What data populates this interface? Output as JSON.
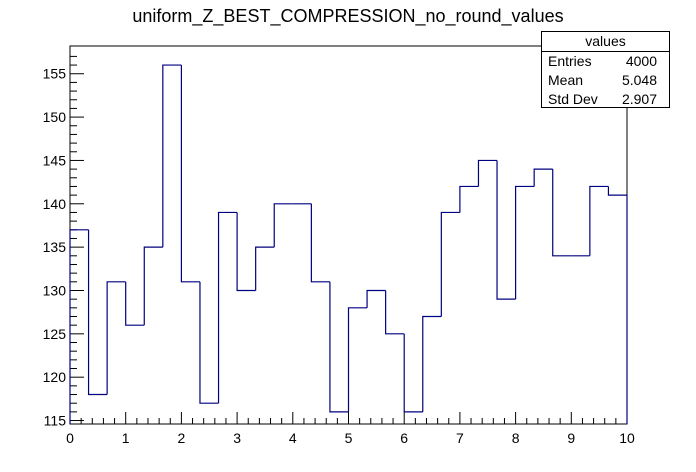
{
  "title": "uniform_Z_BEST_COMPRESSION_no_round_values",
  "stats": {
    "name": "values",
    "rows": [
      {
        "label": "Entries",
        "value": "4000"
      },
      {
        "label": "Mean",
        "value": "5.048"
      },
      {
        "label": "Std Dev",
        "value": "2.907"
      }
    ]
  },
  "chart_data": {
    "type": "histogram",
    "title": "uniform_Z_BEST_COMPRESSION_no_round_values",
    "xlabel": "",
    "ylabel": "",
    "xlim": [
      0,
      10
    ],
    "ylim": [
      114.6,
      158.2
    ],
    "bin_width": 0.333,
    "bins": 30,
    "values": [
      137,
      118,
      131,
      126,
      135,
      156,
      131,
      117,
      139,
      130,
      135,
      140,
      140,
      131,
      116,
      128,
      130,
      125,
      116,
      127,
      139,
      142,
      145,
      129,
      142,
      144,
      134,
      134,
      142,
      141
    ],
    "x_ticks": [
      "0",
      "1",
      "2",
      "3",
      "4",
      "5",
      "6",
      "7",
      "8",
      "9",
      "10"
    ],
    "y_ticks": [
      "115",
      "120",
      "125",
      "130",
      "135",
      "140",
      "145",
      "150",
      "155"
    ],
    "line_color": "#000080",
    "grid": false,
    "legend": "top-right"
  }
}
